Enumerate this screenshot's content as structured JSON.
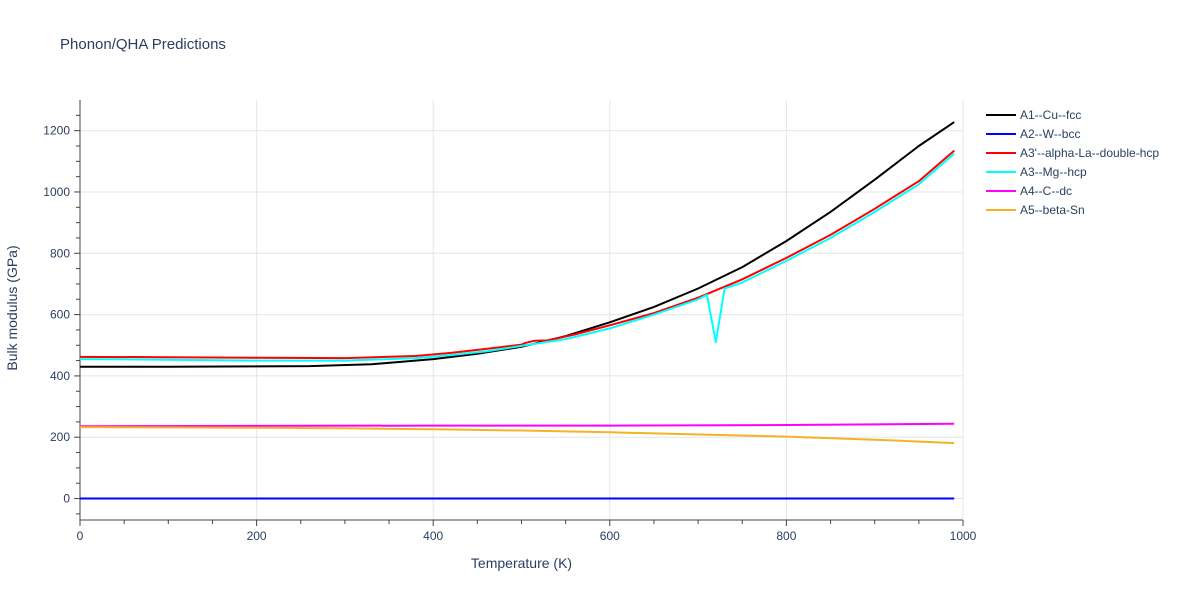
{
  "chart_data": {
    "type": "line",
    "title": "Phonon/QHA Predictions",
    "xlabel": "Temperature (K)",
    "ylabel": "Bulk modulus (GPa)",
    "xlim": [
      0,
      1000
    ],
    "ylim": [
      -70,
      1300
    ],
    "xticks": [
      0,
      200,
      400,
      600,
      800,
      1000
    ],
    "yticks": [
      0,
      200,
      400,
      600,
      800,
      1000,
      1200
    ],
    "grid": true,
    "legend_position": "top-right",
    "series": [
      {
        "name": "A1--Cu--fcc",
        "color": "#000000",
        "x": [
          0,
          100,
          200,
          260,
          330,
          400,
          450,
          500,
          550,
          600,
          650,
          700,
          750,
          800,
          850,
          900,
          950,
          990
        ],
        "y": [
          430,
          430,
          431,
          432,
          438,
          455,
          472,
          495,
          530,
          575,
          625,
          685,
          755,
          840,
          935,
          1040,
          1150,
          1228
        ]
      },
      {
        "name": "A2--W--bcc",
        "color": "#0000ff",
        "x": [
          0,
          250,
          500,
          750,
          990
        ],
        "y": [
          0,
          0,
          0,
          0,
          0
        ]
      },
      {
        "name": "A3'--alpha-La--double-hcp",
        "color": "#ff0000",
        "x": [
          0,
          100,
          200,
          300,
          380,
          420,
          460,
          500,
          505,
          515,
          530,
          560,
          600,
          650,
          700,
          750,
          800,
          850,
          900,
          950,
          990
        ],
        "y": [
          462,
          461,
          459,
          458,
          465,
          475,
          488,
          502,
          508,
          515,
          516,
          535,
          565,
          605,
          655,
          715,
          785,
          860,
          945,
          1035,
          1135
        ]
      },
      {
        "name": "A3--Mg--hcp",
        "color": "#00ffff",
        "x": [
          0,
          100,
          200,
          300,
          380,
          420,
          460,
          500,
          550,
          600,
          650,
          700,
          710,
          720,
          730,
          750,
          800,
          850,
          900,
          950,
          990
        ],
        "y": [
          455,
          453,
          450,
          450,
          458,
          468,
          480,
          498,
          520,
          555,
          600,
          650,
          665,
          510,
          685,
          705,
          775,
          850,
          935,
          1025,
          1125
        ]
      },
      {
        "name": "A4--C--dc",
        "color": "#ff00ff",
        "x": [
          0,
          200,
          400,
          600,
          800,
          990
        ],
        "y": [
          236,
          237,
          238,
          238,
          240,
          244
        ]
      },
      {
        "name": "A5--beta-Sn",
        "color": "#f5b324",
        "x": [
          0,
          100,
          200,
          300,
          400,
          500,
          600,
          700,
          800,
          900,
          990
        ],
        "y": [
          233,
          232,
          231,
          229,
          226,
          222,
          216,
          209,
          202,
          192,
          181
        ]
      }
    ]
  }
}
